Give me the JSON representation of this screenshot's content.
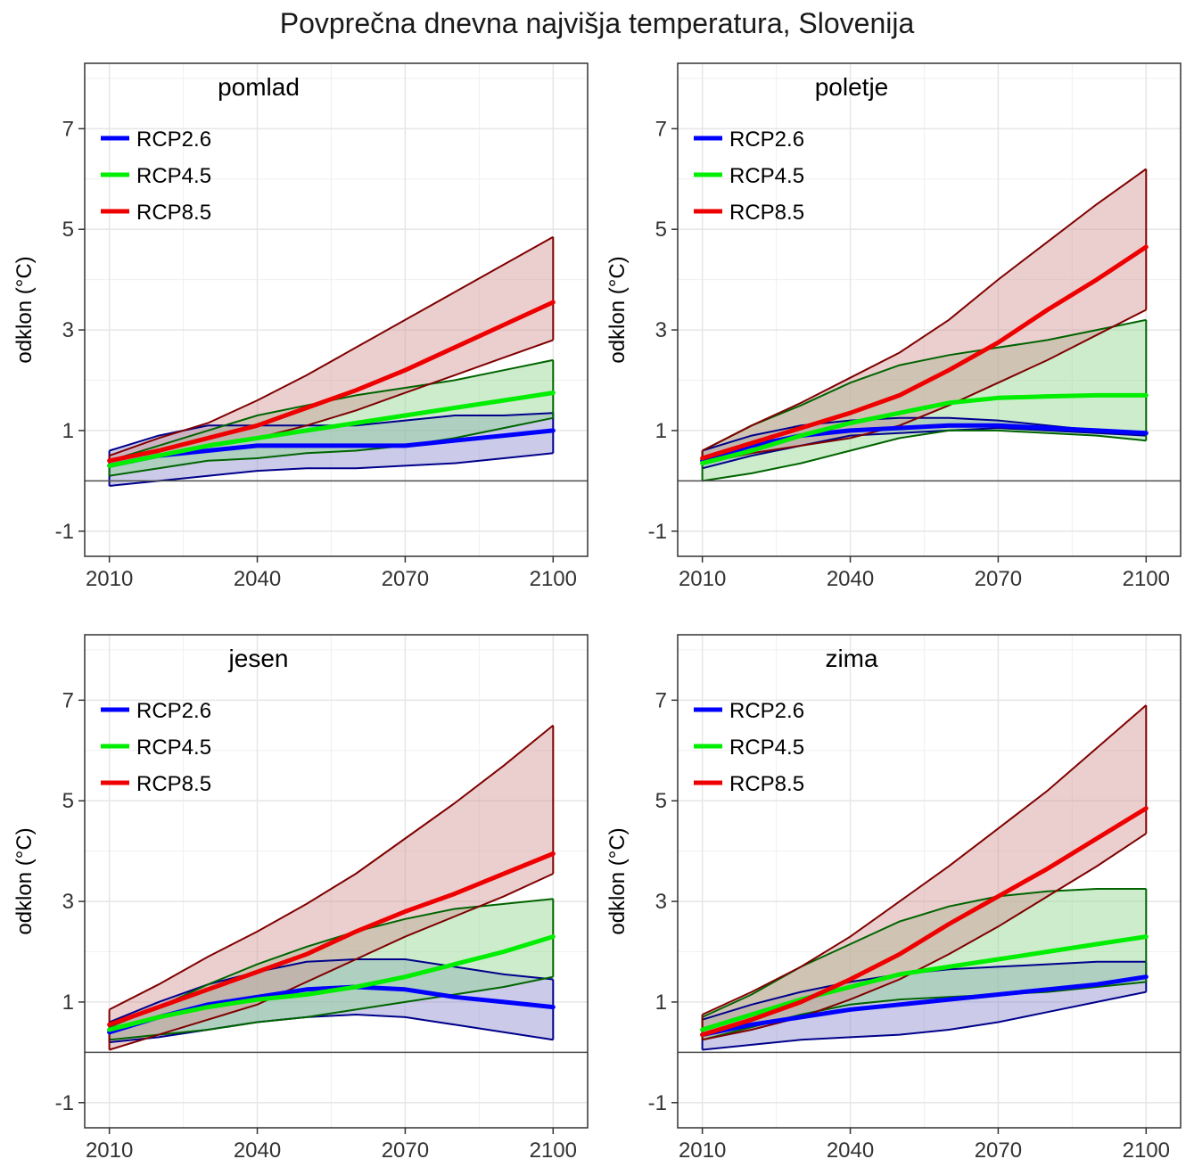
{
  "title": "Povprečna dnevna najvišja temperatura, Slovenija",
  "chart_data": [
    {
      "type": "area",
      "title": "pomlad",
      "ylabel": "odklon (°C)",
      "xlim": [
        2005,
        2107
      ],
      "ylim": [
        -1.5,
        8.3
      ],
      "xticks": [
        2010,
        2040,
        2070,
        2100
      ],
      "yticks": [
        -1,
        1,
        3,
        5,
        7
      ],
      "grid": true,
      "legend_position": "top-left",
      "series": [
        {
          "name": "RCP2.6",
          "color": "#0000ff",
          "fill": "#8c8ccf",
          "edge": "#00008b",
          "x": [
            2010,
            2020,
            2030,
            2040,
            2050,
            2060,
            2070,
            2080,
            2090,
            2100
          ],
          "mean": [
            0.3,
            0.5,
            0.6,
            0.7,
            0.7,
            0.7,
            0.7,
            0.8,
            0.9,
            1.0
          ],
          "upper": [
            0.6,
            0.9,
            1.1,
            1.1,
            1.1,
            1.1,
            1.2,
            1.3,
            1.3,
            1.35
          ],
          "lower": [
            -0.1,
            0.0,
            0.1,
            0.2,
            0.25,
            0.25,
            0.3,
            0.35,
            0.45,
            0.55
          ]
        },
        {
          "name": "RCP4.5",
          "color": "#00ee00",
          "fill": "#8fd48f",
          "edge": "#006400",
          "x": [
            2010,
            2020,
            2030,
            2040,
            2050,
            2060,
            2070,
            2080,
            2090,
            2100
          ],
          "mean": [
            0.3,
            0.5,
            0.7,
            0.85,
            1.0,
            1.15,
            1.3,
            1.45,
            1.6,
            1.75
          ],
          "upper": [
            0.4,
            0.7,
            1.0,
            1.3,
            1.5,
            1.7,
            1.85,
            2.0,
            2.2,
            2.4
          ],
          "lower": [
            0.1,
            0.25,
            0.4,
            0.45,
            0.55,
            0.6,
            0.7,
            0.85,
            1.05,
            1.25
          ]
        },
        {
          "name": "RCP8.5",
          "color": "#ee0000",
          "fill": "#d39494",
          "edge": "#800000",
          "x": [
            2010,
            2020,
            2030,
            2040,
            2050,
            2060,
            2070,
            2080,
            2090,
            2100
          ],
          "mean": [
            0.4,
            0.6,
            0.85,
            1.1,
            1.45,
            1.8,
            2.2,
            2.65,
            3.1,
            3.55
          ],
          "upper": [
            0.5,
            0.85,
            1.15,
            1.6,
            2.1,
            2.65,
            3.2,
            3.75,
            4.3,
            4.85
          ],
          "lower": [
            0.3,
            0.5,
            0.7,
            0.85,
            1.1,
            1.4,
            1.75,
            2.1,
            2.45,
            2.8
          ]
        }
      ]
    },
    {
      "type": "area",
      "title": "poletje",
      "ylabel": "odklon (°C)",
      "xlim": [
        2005,
        2107
      ],
      "ylim": [
        -1.5,
        8.3
      ],
      "xticks": [
        2010,
        2040,
        2070,
        2100
      ],
      "yticks": [
        -1,
        1,
        3,
        5,
        7
      ],
      "grid": true,
      "legend_position": "top-left",
      "series": [
        {
          "name": "RCP2.6",
          "color": "#0000ff",
          "fill": "#8c8ccf",
          "edge": "#00008b",
          "x": [
            2010,
            2020,
            2030,
            2040,
            2050,
            2060,
            2070,
            2080,
            2090,
            2100
          ],
          "mean": [
            0.4,
            0.7,
            0.9,
            1.0,
            1.05,
            1.1,
            1.1,
            1.05,
            1.0,
            0.95
          ],
          "upper": [
            0.6,
            0.9,
            1.1,
            1.2,
            1.25,
            1.25,
            1.2,
            1.1,
            1.0,
            0.95
          ],
          "lower": [
            0.25,
            0.5,
            0.7,
            0.9,
            0.95,
            1.0,
            1.05,
            1.0,
            0.95,
            0.9
          ]
        },
        {
          "name": "RCP4.5",
          "color": "#00ee00",
          "fill": "#8fd48f",
          "edge": "#006400",
          "x": [
            2010,
            2020,
            2030,
            2040,
            2050,
            2060,
            2070,
            2080,
            2090,
            2100
          ],
          "mean": [
            0.35,
            0.6,
            0.9,
            1.15,
            1.35,
            1.55,
            1.65,
            1.68,
            1.7,
            1.7
          ],
          "upper": [
            0.6,
            1.1,
            1.5,
            1.95,
            2.3,
            2.5,
            2.65,
            2.8,
            3.0,
            3.2
          ],
          "lower": [
            0.0,
            0.15,
            0.35,
            0.6,
            0.85,
            1.0,
            1.0,
            0.95,
            0.9,
            0.8
          ]
        },
        {
          "name": "RCP8.5",
          "color": "#ee0000",
          "fill": "#d39494",
          "edge": "#800000",
          "x": [
            2010,
            2020,
            2030,
            2040,
            2050,
            2060,
            2070,
            2080,
            2090,
            2100
          ],
          "mean": [
            0.45,
            0.75,
            1.05,
            1.35,
            1.7,
            2.2,
            2.75,
            3.4,
            4.0,
            4.65
          ],
          "upper": [
            0.6,
            1.1,
            1.55,
            2.05,
            2.55,
            3.2,
            4.0,
            4.75,
            5.5,
            6.2
          ],
          "lower": [
            0.35,
            0.55,
            0.7,
            0.85,
            1.1,
            1.5,
            1.95,
            2.4,
            2.9,
            3.4
          ]
        }
      ]
    },
    {
      "type": "area",
      "title": "jesen",
      "ylabel": "odklon (°C)",
      "xlim": [
        2005,
        2107
      ],
      "ylim": [
        -1.5,
        8.3
      ],
      "xticks": [
        2010,
        2040,
        2070,
        2100
      ],
      "yticks": [
        -1,
        1,
        3,
        5,
        7
      ],
      "grid": true,
      "legend_position": "top-left",
      "series": [
        {
          "name": "RCP2.6",
          "color": "#0000ff",
          "fill": "#8c8ccf",
          "edge": "#00008b",
          "x": [
            2010,
            2020,
            2030,
            2040,
            2050,
            2060,
            2070,
            2080,
            2090,
            2100
          ],
          "mean": [
            0.4,
            0.7,
            0.95,
            1.1,
            1.25,
            1.3,
            1.25,
            1.1,
            1.0,
            0.9
          ],
          "upper": [
            0.6,
            1.0,
            1.35,
            1.6,
            1.8,
            1.85,
            1.85,
            1.7,
            1.55,
            1.45
          ],
          "lower": [
            0.2,
            0.3,
            0.45,
            0.6,
            0.7,
            0.75,
            0.7,
            0.55,
            0.4,
            0.25
          ]
        },
        {
          "name": "RCP4.5",
          "color": "#00ee00",
          "fill": "#8fd48f",
          "edge": "#006400",
          "x": [
            2010,
            2020,
            2030,
            2040,
            2050,
            2060,
            2070,
            2080,
            2090,
            2100
          ],
          "mean": [
            0.45,
            0.7,
            0.9,
            1.05,
            1.15,
            1.3,
            1.5,
            1.75,
            2.0,
            2.3
          ],
          "upper": [
            0.5,
            0.9,
            1.35,
            1.75,
            2.1,
            2.4,
            2.65,
            2.85,
            2.95,
            3.05
          ],
          "lower": [
            0.25,
            0.35,
            0.45,
            0.6,
            0.7,
            0.85,
            1.0,
            1.15,
            1.3,
            1.5
          ]
        },
        {
          "name": "RCP8.5",
          "color": "#ee0000",
          "fill": "#d39494",
          "edge": "#800000",
          "x": [
            2010,
            2020,
            2030,
            2040,
            2050,
            2060,
            2070,
            2080,
            2090,
            2100
          ],
          "mean": [
            0.55,
            0.9,
            1.25,
            1.6,
            1.95,
            2.4,
            2.8,
            3.15,
            3.55,
            3.95
          ],
          "upper": [
            0.85,
            1.35,
            1.9,
            2.4,
            2.95,
            3.55,
            4.25,
            4.95,
            5.7,
            6.5
          ],
          "lower": [
            0.05,
            0.35,
            0.65,
            0.95,
            1.4,
            1.85,
            2.3,
            2.7,
            3.1,
            3.55
          ]
        }
      ]
    },
    {
      "type": "area",
      "title": "zima",
      "ylabel": "odklon (°C)",
      "xlim": [
        2005,
        2107
      ],
      "ylim": [
        -1.5,
        8.3
      ],
      "xticks": [
        2010,
        2040,
        2070,
        2100
      ],
      "yticks": [
        -1,
        1,
        3,
        5,
        7
      ],
      "grid": true,
      "legend_position": "top-left",
      "series": [
        {
          "name": "RCP2.6",
          "color": "#0000ff",
          "fill": "#8c8ccf",
          "edge": "#00008b",
          "x": [
            2010,
            2020,
            2030,
            2040,
            2050,
            2060,
            2070,
            2080,
            2090,
            2100
          ],
          "mean": [
            0.35,
            0.55,
            0.7,
            0.85,
            0.95,
            1.05,
            1.15,
            1.25,
            1.35,
            1.5
          ],
          "upper": [
            0.65,
            0.95,
            1.2,
            1.4,
            1.55,
            1.65,
            1.7,
            1.75,
            1.8,
            1.8
          ],
          "lower": [
            0.05,
            0.15,
            0.25,
            0.3,
            0.35,
            0.45,
            0.6,
            0.8,
            1.0,
            1.2
          ]
        },
        {
          "name": "RCP4.5",
          "color": "#00ee00",
          "fill": "#8fd48f",
          "edge": "#006400",
          "x": [
            2010,
            2020,
            2030,
            2040,
            2050,
            2060,
            2070,
            2080,
            2090,
            2100
          ],
          "mean": [
            0.45,
            0.75,
            1.05,
            1.3,
            1.55,
            1.7,
            1.85,
            2.0,
            2.15,
            2.3
          ],
          "upper": [
            0.7,
            1.15,
            1.7,
            2.15,
            2.6,
            2.9,
            3.1,
            3.2,
            3.25,
            3.25
          ],
          "lower": [
            0.25,
            0.5,
            0.75,
            0.95,
            1.05,
            1.1,
            1.15,
            1.2,
            1.3,
            1.4
          ]
        },
        {
          "name": "RCP8.5",
          "color": "#ee0000",
          "fill": "#d39494",
          "edge": "#800000",
          "x": [
            2010,
            2020,
            2030,
            2040,
            2050,
            2060,
            2070,
            2080,
            2090,
            2100
          ],
          "mean": [
            0.35,
            0.65,
            1.0,
            1.45,
            1.95,
            2.55,
            3.1,
            3.65,
            4.25,
            4.85
          ],
          "upper": [
            0.75,
            1.2,
            1.7,
            2.3,
            3.0,
            3.7,
            4.45,
            5.2,
            6.05,
            6.9
          ],
          "lower": [
            0.25,
            0.45,
            0.7,
            1.05,
            1.45,
            1.95,
            2.5,
            3.1,
            3.7,
            4.35
          ]
        }
      ]
    }
  ]
}
